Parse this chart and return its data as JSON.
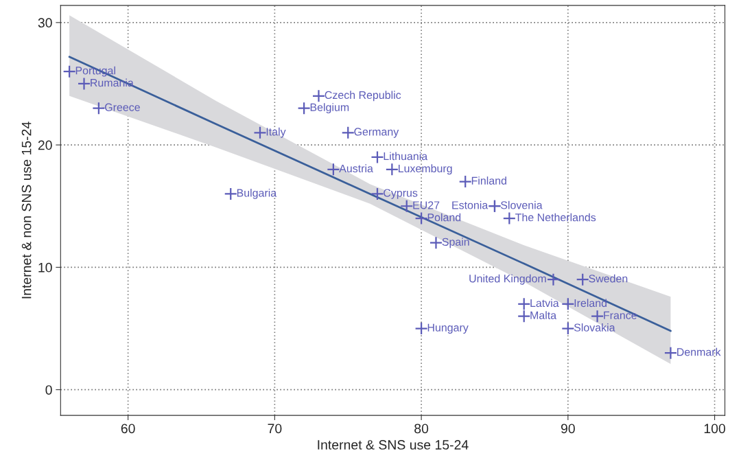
{
  "chart_data": {
    "type": "scatter",
    "xlabel": "Internet & SNS use 15-24",
    "ylabel": "Internet & non SNS use 15-24",
    "xlim": [
      55.4,
      100.7
    ],
    "ylim": [
      -2.1,
      31.4
    ],
    "xticks": [
      60,
      70,
      80,
      90,
      100
    ],
    "yticks": [
      0,
      10,
      20,
      30
    ],
    "grid": true,
    "marker": "cross",
    "series": [
      {
        "type": "line",
        "color": "#3a5f9a",
        "x": [
          56,
          66,
          76.5,
          87,
          97
        ],
        "values": [
          27.2,
          21.7,
          16.0,
          10.3,
          4.8
        ],
        "lower": [
          24.0,
          19.8,
          15.2,
          8.8,
          2.1
        ],
        "upper": [
          30.6,
          23.6,
          16.8,
          11.8,
          7.6
        ],
        "marker": "none"
      },
      {
        "color": "#5b5bb8",
        "x": [
          56,
          57,
          58,
          69,
          67,
          73,
          72,
          75,
          74,
          77,
          78,
          77,
          79,
          80,
          81,
          83,
          85,
          85,
          86,
          89,
          91,
          87,
          87,
          90,
          92,
          90,
          80,
          97
        ],
        "values": [
          26,
          25,
          23,
          21,
          16,
          24,
          23,
          21,
          18,
          19,
          18,
          16,
          15,
          14,
          12,
          17,
          15,
          15,
          14,
          9,
          9,
          7,
          6,
          7,
          6,
          5,
          5,
          3
        ]
      }
    ],
    "annotations": [
      {
        "text": "Portugal",
        "x": 56,
        "y": 26
      },
      {
        "text": "Rumania",
        "x": 57,
        "y": 25
      },
      {
        "text": "Greece",
        "x": 58,
        "y": 23
      },
      {
        "text": "Italy",
        "x": 69,
        "y": 21
      },
      {
        "text": "Bulgaria",
        "x": 67,
        "y": 16
      },
      {
        "text": "Czech Republic",
        "x": 73,
        "y": 24
      },
      {
        "text": "Belgium",
        "x": 72,
        "y": 23
      },
      {
        "text": "Germany",
        "x": 75,
        "y": 21
      },
      {
        "text": "Austria",
        "x": 74,
        "y": 18
      },
      {
        "text": "Lithuania",
        "x": 77,
        "y": 19
      },
      {
        "text": "Luxemburg",
        "x": 78,
        "y": 18
      },
      {
        "text": "Cyprus",
        "x": 77,
        "y": 16
      },
      {
        "text": "EU27",
        "x": 79,
        "y": 15
      },
      {
        "text": "Poland",
        "x": 80,
        "y": 14
      },
      {
        "text": "Spain",
        "x": 81,
        "y": 12
      },
      {
        "text": "Finland",
        "x": 83,
        "y": 17
      },
      {
        "text": "Estonia",
        "x": 85,
        "y": 15
      },
      {
        "text": "Slovenia",
        "x": 85,
        "y": 15
      },
      {
        "text": "The Netherlands",
        "x": 86,
        "y": 14
      },
      {
        "text": "United Kingdom",
        "x": 89,
        "y": 9
      },
      {
        "text": "Sweden",
        "x": 91,
        "y": 9
      },
      {
        "text": "Latvia",
        "x": 87,
        "y": 7
      },
      {
        "text": "Malta",
        "x": 87,
        "y": 6
      },
      {
        "text": "Ireland",
        "x": 90,
        "y": 7
      },
      {
        "text": "France",
        "x": 92,
        "y": 6
      },
      {
        "text": "Slovakia",
        "x": 90,
        "y": 5
      },
      {
        "text": "Hungary",
        "x": 80,
        "y": 5
      },
      {
        "text": "Denmark",
        "x": 97,
        "y": 3
      }
    ]
  }
}
